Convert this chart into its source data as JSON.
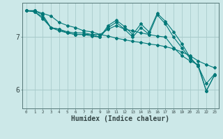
{
  "xlabel": "Humidex (Indice chaleur)",
  "bg_color": "#cce8e8",
  "line_color": "#007878",
  "grid_color": "#aacccc",
  "x_ticks": [
    0,
    1,
    2,
    3,
    4,
    5,
    6,
    7,
    8,
    9,
    10,
    11,
    12,
    13,
    14,
    15,
    16,
    17,
    18,
    19,
    20,
    21,
    22,
    23
  ],
  "y_ticks": [
    6,
    7
  ],
  "ylim": [
    5.65,
    7.65
  ],
  "xlim": [
    -0.5,
    23.5
  ],
  "lines": [
    {
      "x": [
        0,
        1,
        2,
        3,
        4,
        5,
        6,
        7,
        8,
        9,
        10,
        11,
        12,
        13,
        14,
        15,
        16,
        17,
        18,
        19,
        20,
        21,
        22,
        23
      ],
      "y": [
        7.5,
        7.5,
        7.45,
        7.4,
        7.28,
        7.22,
        7.18,
        7.12,
        7.1,
        7.05,
        7.02,
        6.98,
        6.95,
        6.92,
        6.9,
        6.87,
        6.85,
        6.82,
        6.78,
        6.72,
        6.65,
        6.55,
        6.48,
        6.42
      ]
    },
    {
      "x": [
        0,
        1,
        2,
        3,
        4,
        5,
        6,
        7,
        8,
        9,
        10,
        11,
        12,
        13,
        14,
        15,
        16,
        17,
        18,
        19,
        20,
        21,
        22,
        23
      ],
      "y": [
        7.5,
        7.5,
        7.42,
        7.18,
        7.12,
        7.08,
        7.05,
        7.05,
        7.05,
        7.05,
        7.15,
        7.22,
        7.15,
        7.12,
        7.08,
        7.05,
        7.02,
        7.0,
        6.8,
        6.65,
        6.55,
        6.48,
        5.98,
        6.28
      ]
    },
    {
      "x": [
        0,
        1,
        2,
        3,
        4,
        5,
        6,
        7,
        8,
        9,
        10,
        11,
        12,
        13,
        14,
        15,
        16,
        17,
        18,
        19,
        20,
        21,
        22,
        23
      ],
      "y": [
        7.5,
        7.48,
        7.35,
        7.18,
        7.15,
        7.1,
        7.08,
        7.08,
        7.05,
        7.0,
        7.22,
        7.32,
        7.2,
        7.05,
        7.25,
        7.1,
        7.45,
        7.3,
        7.1,
        6.88,
        6.62,
        6.45,
        6.12,
        6.3
      ]
    },
    {
      "x": [
        0,
        1,
        2,
        3,
        4,
        5,
        6,
        7,
        8,
        9,
        10,
        11,
        12,
        13,
        14,
        15,
        16,
        17,
        18,
        19,
        20,
        21,
        22,
        23
      ],
      "y": [
        7.5,
        7.48,
        7.38,
        7.18,
        7.15,
        7.08,
        7.05,
        7.05,
        7.02,
        7.0,
        7.18,
        7.28,
        7.15,
        7.0,
        7.18,
        7.05,
        7.42,
        7.25,
        7.0,
        6.8,
        6.6,
        6.45,
        5.98,
        6.28
      ]
    }
  ]
}
